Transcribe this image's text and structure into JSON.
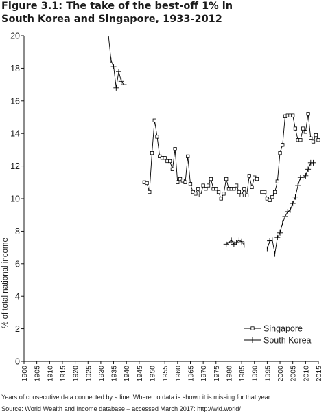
{
  "figure": {
    "title_line1": "Figure 3.1: The take of the best-off 1% in",
    "title_line2": "South Korea and Singapore, 1933-2012",
    "note": "Years of consecutive data connected by a line. Where no data is shown it is missing for that year.",
    "source": "Source: World Wealth and Income database – accessed March 2017: http://wid.world/"
  },
  "chart_data": {
    "type": "line",
    "title": "Figure 3.1: The take of the best-off 1% in South Korea and Singapore, 1933-2012",
    "xlabel": "",
    "ylabel": "% of total national income",
    "xlim": [
      1900,
      2015
    ],
    "ylim": [
      0,
      20
    ],
    "x_ticks": [
      1900,
      1905,
      1910,
      1915,
      1920,
      1925,
      1930,
      1935,
      1940,
      1945,
      1950,
      1955,
      1960,
      1965,
      1970,
      1975,
      1980,
      1985,
      1990,
      1995,
      2000,
      2005,
      2010,
      2015
    ],
    "y_ticks": [
      0,
      2,
      4,
      6,
      8,
      10,
      12,
      14,
      16,
      18,
      20
    ],
    "grid": false,
    "legend_position": "bottom-right",
    "series": [
      {
        "name": "Singapore",
        "marker": "square",
        "segments": [
          [
            [
              1947,
              11.0
            ],
            [
              1948,
              10.95
            ],
            [
              1949,
              10.4
            ],
            [
              1950,
              12.8
            ],
            [
              1951,
              14.8
            ],
            [
              1952,
              13.8
            ],
            [
              1953,
              12.6
            ],
            [
              1954,
              12.5
            ],
            [
              1955,
              12.5
            ],
            [
              1956,
              12.3
            ],
            [
              1957,
              12.3
            ],
            [
              1958,
              11.8
            ],
            [
              1959,
              13.05
            ],
            [
              1960,
              11.0
            ],
            [
              1961,
              11.2
            ],
            [
              1962,
              11.1
            ],
            [
              1963,
              11.0
            ],
            [
              1964,
              12.6
            ],
            [
              1965,
              10.9
            ],
            [
              1966,
              10.4
            ],
            [
              1967,
              10.3
            ],
            [
              1968,
              10.6
            ],
            [
              1969,
              10.2
            ],
            [
              1970,
              10.8
            ],
            [
              1971,
              10.6
            ],
            [
              1972,
              10.8
            ],
            [
              1973,
              11.2
            ],
            [
              1974,
              10.6
            ],
            [
              1975,
              10.6
            ],
            [
              1976,
              10.4
            ],
            [
              1977,
              10.0
            ],
            [
              1978,
              10.3
            ],
            [
              1979,
              11.2
            ],
            [
              1980,
              10.6
            ],
            [
              1981,
              10.6
            ],
            [
              1982,
              10.6
            ],
            [
              1983,
              10.8
            ],
            [
              1984,
              10.4
            ],
            [
              1985,
              10.2
            ],
            [
              1986,
              10.6
            ],
            [
              1987,
              10.2
            ],
            [
              1988,
              11.4
            ],
            [
              1989,
              10.7
            ],
            [
              1990,
              11.3
            ],
            [
              1991,
              11.2
            ]
          ],
          [
            [
              1993,
              10.4
            ],
            [
              1994,
              10.4
            ],
            [
              1995,
              10.0
            ],
            [
              1996,
              9.9
            ],
            [
              1997,
              10.1
            ],
            [
              1998,
              10.4
            ],
            [
              1999,
              11.05
            ],
            [
              2000,
              12.8
            ],
            [
              2001,
              13.3
            ],
            [
              2002,
              15.05
            ],
            [
              2003,
              15.1
            ],
            [
              2004,
              15.1
            ],
            [
              2005,
              15.1
            ],
            [
              2006,
              14.3
            ],
            [
              2007,
              13.6
            ],
            [
              2008,
              13.6
            ],
            [
              2009,
              14.3
            ],
            [
              2010,
              14.1
            ],
            [
              2011,
              15.2
            ],
            [
              2012,
              13.7
            ],
            [
              2013,
              13.5
            ],
            [
              2014,
              13.9
            ],
            [
              2015,
              13.6
            ]
          ]
        ]
      },
      {
        "name": "South Korea",
        "marker": "plus",
        "segments": [
          [
            [
              1933,
              20.0
            ],
            [
              1934,
              18.5
            ],
            [
              1935,
              18.1
            ],
            [
              1936,
              16.8
            ],
            [
              1937,
              17.8
            ],
            [
              1938,
              17.2
            ],
            [
              1939,
              17.0
            ]
          ],
          [
            [
              1979,
              7.2
            ],
            [
              1980,
              7.3
            ],
            [
              1981,
              7.45
            ],
            [
              1982,
              7.2
            ],
            [
              1983,
              7.3
            ],
            [
              1984,
              7.45
            ],
            [
              1985,
              7.35
            ],
            [
              1986,
              7.15
            ]
          ],
          [
            [
              1995,
              6.9
            ],
            [
              1996,
              7.4
            ],
            [
              1997,
              7.45
            ],
            [
              1998,
              6.6
            ],
            [
              1999,
              7.6
            ],
            [
              2000,
              7.9
            ],
            [
              2001,
              8.5
            ],
            [
              2002,
              8.9
            ],
            [
              2003,
              9.2
            ],
            [
              2004,
              9.3
            ],
            [
              2005,
              9.7
            ],
            [
              2006,
              10.1
            ],
            [
              2007,
              10.8
            ],
            [
              2008,
              11.3
            ],
            [
              2009,
              11.3
            ],
            [
              2010,
              11.4
            ],
            [
              2011,
              11.8
            ],
            [
              2012,
              12.2
            ],
            [
              2013,
              12.2
            ]
          ]
        ]
      }
    ]
  }
}
